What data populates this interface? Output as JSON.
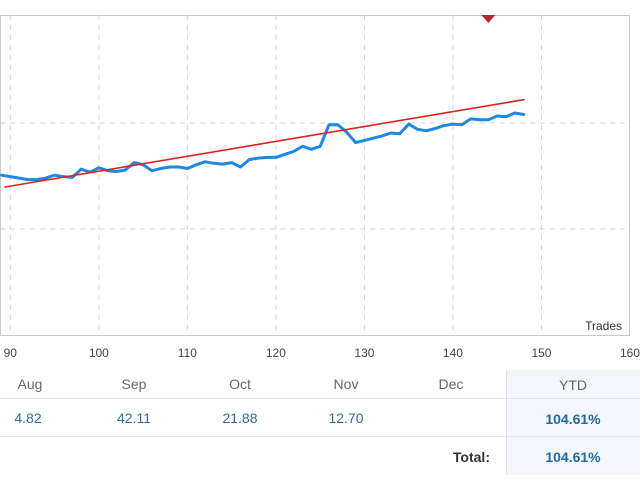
{
  "chart_data": {
    "type": "line",
    "xlabel": "Trades",
    "x_ticks": [
      90,
      100,
      110,
      120,
      130,
      140,
      150,
      160
    ],
    "xlim": [
      89.4,
      160
    ],
    "y_gridlines": 3,
    "grid": true,
    "series": [
      {
        "kind": "balance",
        "color": "#1e88e5",
        "x": [
          89,
          90,
          91,
          92,
          93,
          94,
          95,
          96,
          97,
          98,
          99,
          100,
          101,
          102,
          103,
          104,
          105,
          106,
          107,
          108,
          109,
          110,
          111,
          112,
          113,
          114,
          115,
          116,
          117,
          118,
          119,
          120,
          121,
          122,
          123,
          124,
          125,
          126,
          127,
          128,
          129,
          130,
          131,
          132,
          133,
          134,
          135,
          136,
          137,
          138,
          139,
          140,
          141,
          142,
          143,
          144,
          145,
          146,
          147,
          148
        ],
        "y": [
          0.16,
          0.14,
          0.12,
          0.1,
          0.1,
          0.12,
          0.16,
          0.14,
          0.13,
          0.24,
          0.2,
          0.26,
          0.22,
          0.21,
          0.23,
          0.33,
          0.3,
          0.22,
          0.25,
          0.27,
          0.27,
          0.25,
          0.3,
          0.34,
          0.32,
          0.31,
          0.33,
          0.27,
          0.37,
          0.39,
          0.4,
          0.4,
          0.44,
          0.48,
          0.55,
          0.51,
          0.55,
          0.84,
          0.84,
          0.74,
          0.6,
          0.63,
          0.66,
          0.69,
          0.73,
          0.72,
          0.85,
          0.78,
          0.76,
          0.79,
          0.83,
          0.85,
          0.84,
          0.92,
          0.91,
          0.91,
          0.96,
          0.95,
          1.0,
          0.98
        ]
      },
      {
        "kind": "trend",
        "color": "#e02020",
        "x": [
          89.4,
          148
        ],
        "y": [
          0.0,
          1.18
        ]
      }
    ]
  },
  "marker": {
    "kind": "triangle-down-icon",
    "color": "#b3262b",
    "x": 144
  },
  "table": {
    "headers": [
      "Aug",
      "Sep",
      "Oct",
      "Nov",
      "Dec"
    ],
    "values": [
      "4.82",
      "42.11",
      "21.88",
      "12.70",
      ""
    ],
    "ytd_header": "YTD",
    "ytd_value": "104.61%",
    "total_label": "Total:",
    "total_value": "104.61%"
  }
}
